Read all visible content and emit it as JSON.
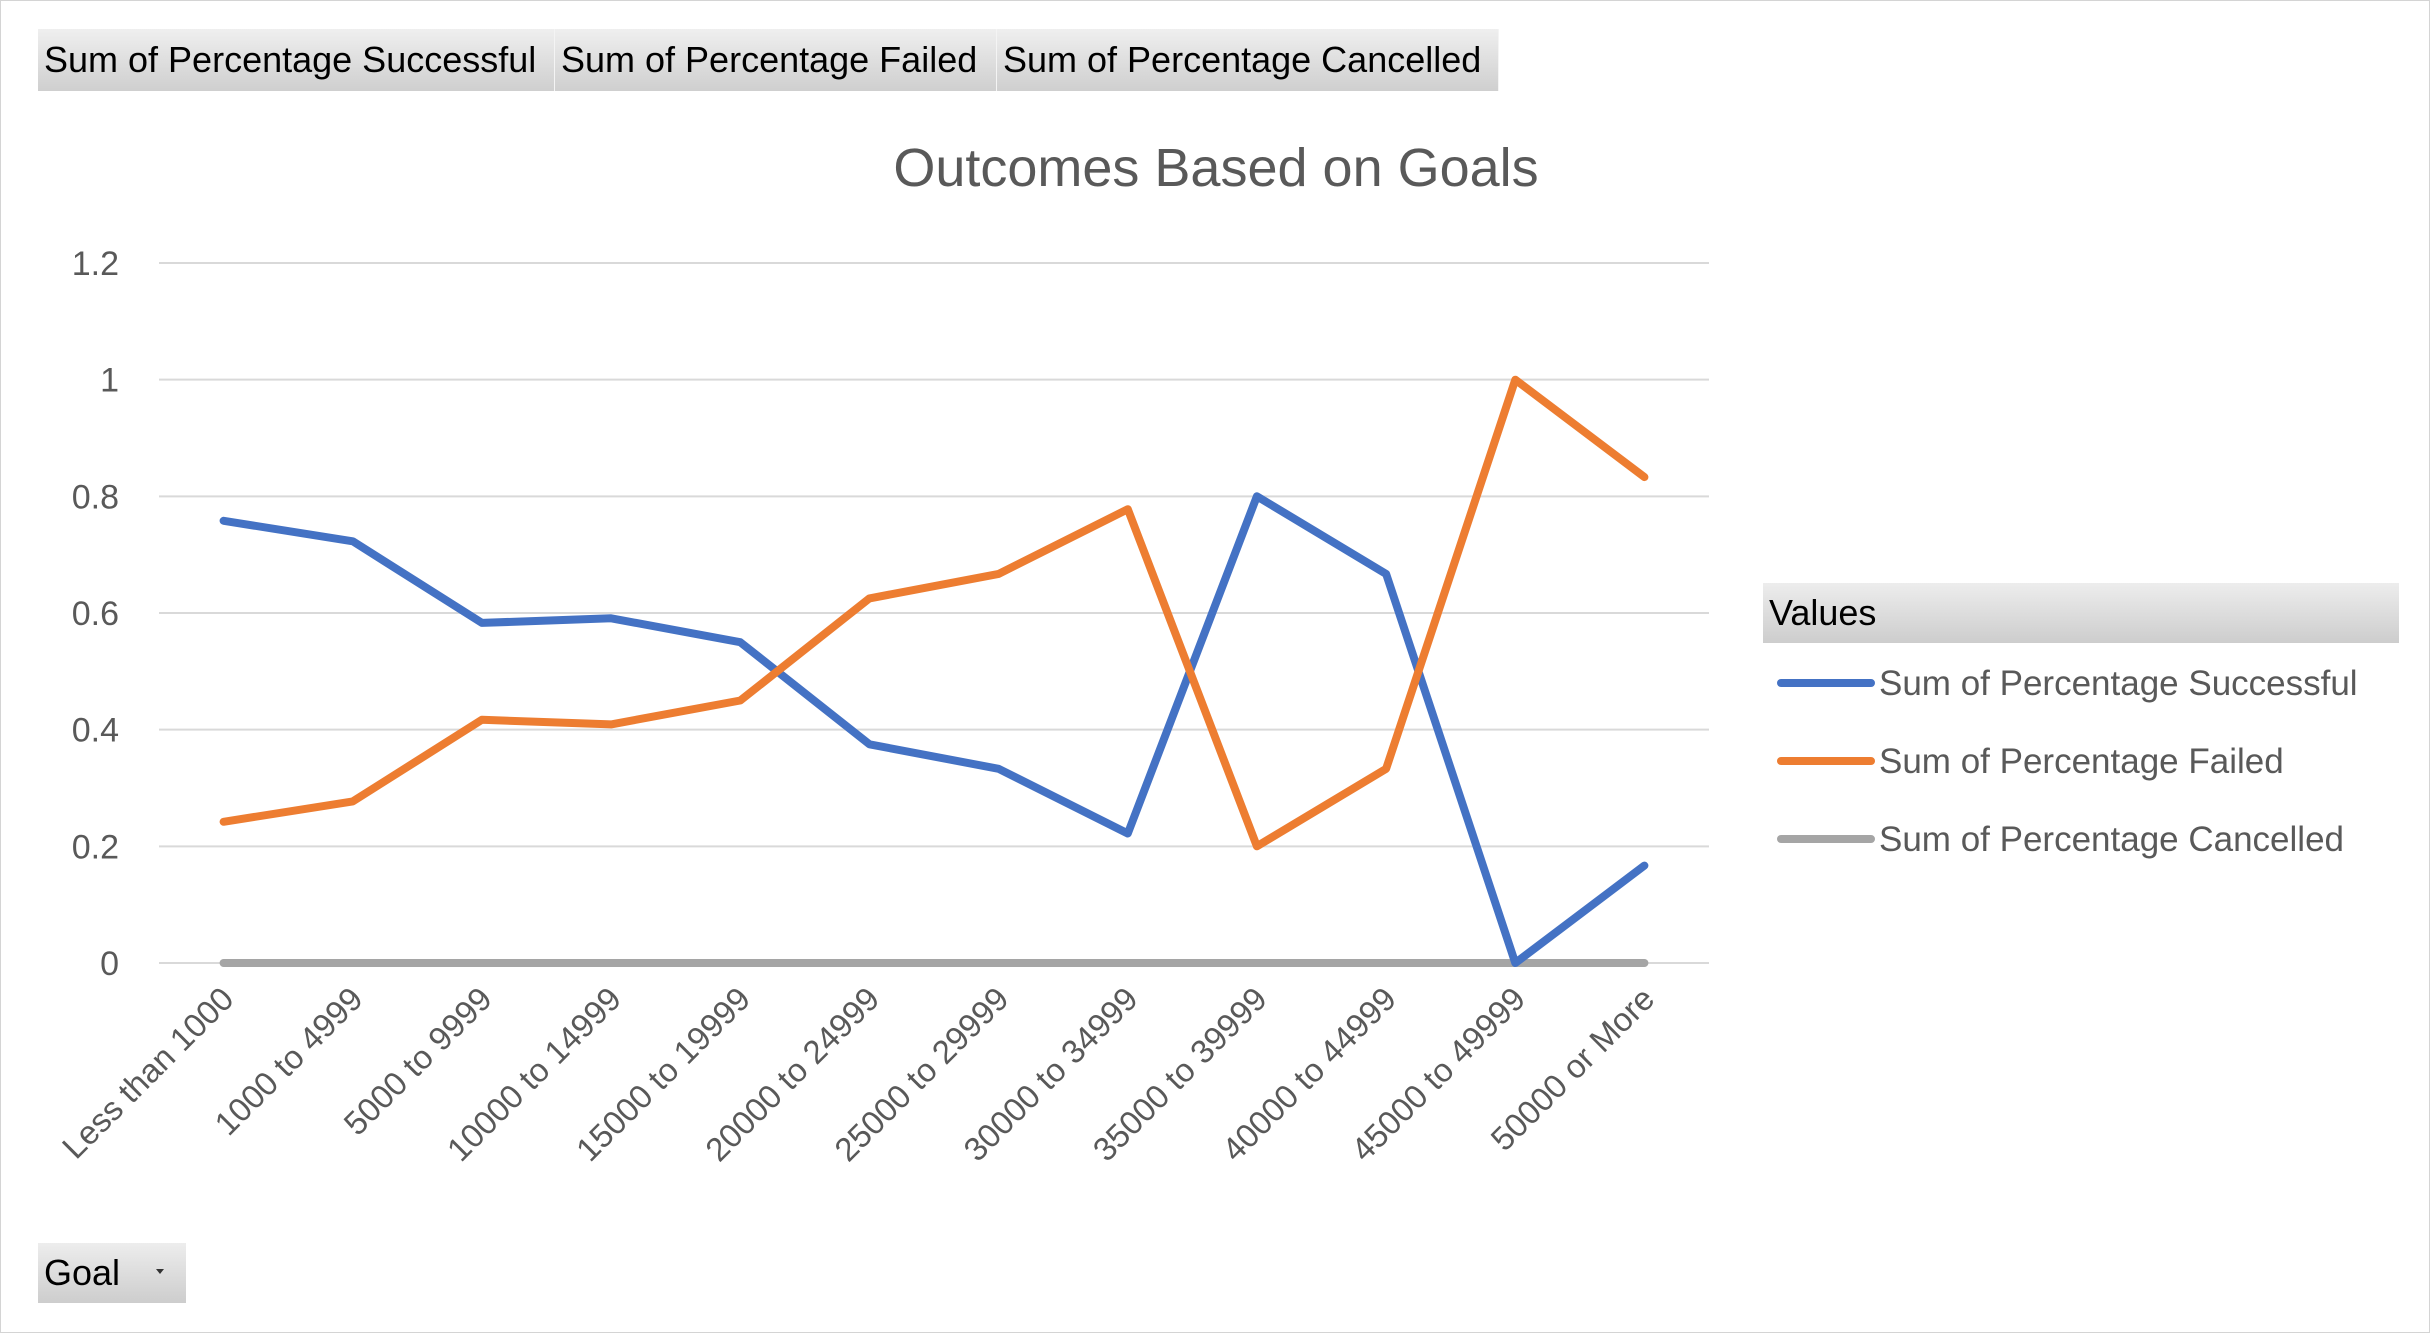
{
  "pivot_buttons": [
    {
      "label": "Sum of Percentage  Successful"
    },
    {
      "label": "Sum of Percentage  Failed"
    },
    {
      "label": "Sum of Percentage  Cancelled"
    }
  ],
  "legend_header": "Values",
  "filter": {
    "label": "Goal",
    "icon": "dropdown-arrow-icon"
  },
  "colors": {
    "successful": "#4472C4",
    "failed": "#ED7D31",
    "cancelled": "#A5A5A5",
    "grid": "#D9D9D9"
  },
  "chart_data": {
    "type": "line",
    "title": "Outcomes Based on Goals",
    "xlabel": "",
    "ylabel": "",
    "categories": [
      "Less than 1000",
      "1000 to 4999",
      "5000 to 9999",
      "10000 to 14999",
      "15000 to 19999",
      "20000 to 24999",
      "25000 to 29999",
      "30000 to 34999",
      "35000 to 39999",
      "40000 to 44999",
      "45000 to 49999",
      "50000 or More"
    ],
    "ylim": [
      0,
      1.2
    ],
    "yticks": [
      "0",
      "0.2",
      "0.4",
      "0.6",
      "0.8",
      "1",
      "1.2"
    ],
    "grid": true,
    "legend_position": "right",
    "series": [
      {
        "name": "Sum of Percentage Successful",
        "color": "#4472C4",
        "values": [
          0.758,
          0.723,
          0.583,
          0.591,
          0.55,
          0.375,
          0.333,
          0.222,
          0.8,
          0.667,
          0.0,
          0.167
        ]
      },
      {
        "name": "Sum of Percentage Failed",
        "color": "#ED7D31",
        "values": [
          0.242,
          0.277,
          0.417,
          0.409,
          0.45,
          0.625,
          0.667,
          0.778,
          0.2,
          0.333,
          1.0,
          0.833
        ]
      },
      {
        "name": "Sum of Percentage Cancelled",
        "color": "#A5A5A5",
        "values": [
          0,
          0,
          0,
          0,
          0,
          0,
          0,
          0,
          0,
          0,
          0,
          0
        ]
      }
    ]
  }
}
